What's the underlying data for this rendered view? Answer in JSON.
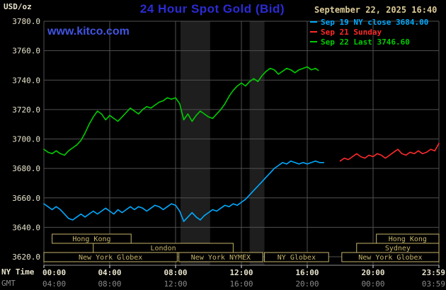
{
  "header": {
    "unit_label": "USD/oz",
    "title": "24 Hour Spot Gold (Bid)",
    "datetime": "September 22, 2025 16:40",
    "watermark": "www.kitco.com"
  },
  "legend": [
    {
      "label": "Sep 19 NY close 3684.00",
      "color": "#00aaff"
    },
    {
      "label": "Sep 21 Sunday",
      "color": "#ff2a2a"
    },
    {
      "label": "Sep 22 Last 3746.60",
      "color": "#00cc00"
    }
  ],
  "axes": {
    "ny_time_label": "NY Time",
    "gmt_label": "GMT",
    "x_ticks_ny": [
      "00:00",
      "04:00",
      "08:00",
      "12:00",
      "16:00",
      "20:00",
      "23:59"
    ],
    "x_ticks_gmt": [
      "04:00",
      "08:00",
      "12:00",
      "16:00",
      "20:00",
      "00:00",
      "03:59"
    ],
    "y_ticks": [
      "3780.0",
      "3760.0",
      "3740.0",
      "3720.0",
      "3700.0",
      "3680.0",
      "3660.0",
      "3640.0",
      "3620.0"
    ]
  },
  "sessions": [
    {
      "row": 0,
      "start": 0.5,
      "end": 5.3,
      "label": "Hong Kong"
    },
    {
      "row": 0,
      "start": 20.2,
      "end": 24,
      "label": "Hong Kong"
    },
    {
      "row": 1,
      "start": 3.0,
      "end": 11.5,
      "label": "London"
    },
    {
      "row": 1,
      "start": 19.0,
      "end": 24,
      "label": "Sydney"
    },
    {
      "row": 2,
      "start": 0,
      "end": 8.1,
      "label": "New York Globex"
    },
    {
      "row": 2,
      "start": 8.2,
      "end": 13.3,
      "label": "New York NYMEX"
    },
    {
      "row": 2,
      "start": 13.4,
      "end": 17.3,
      "label": "NY Globex"
    },
    {
      "row": 2,
      "start": 18.1,
      "end": 24,
      "label": "New York Globex"
    }
  ],
  "colors": {
    "title_blue": "#2b2bd4",
    "watermark_blue": "#4154e2",
    "datetime_tan": "#dcca96",
    "axis_text": "#e8e4cc",
    "gmt_text": "#8a8a8a",
    "grid": "#505050",
    "session_tan": "#c6b46a",
    "band": "#1e1e1e"
  },
  "chart_data": {
    "type": "line",
    "title": "24 Hour Spot Gold (Bid)",
    "xlabel": "NY Time",
    "ylabel": "USD/oz",
    "xlim": [
      0,
      24
    ],
    "ylim": [
      3620,
      3780
    ],
    "y_grid_step": 20,
    "x_grid_hours": [
      0,
      4,
      8,
      12,
      16,
      20,
      24
    ],
    "grid": true,
    "legend_position": "top-right",
    "shaded_bands": [
      {
        "start": 8.3,
        "end": 10.1
      },
      {
        "start": 12.5,
        "end": 13.4
      }
    ],
    "series": [
      {
        "name": "Sep 19 NY close 3684.00",
        "color": "#00aaff",
        "x": [
          0,
          0.25,
          0.5,
          0.75,
          1,
          1.25,
          1.5,
          1.75,
          2,
          2.25,
          2.5,
          2.75,
          3,
          3.25,
          3.5,
          3.75,
          4,
          4.25,
          4.5,
          4.75,
          5,
          5.25,
          5.5,
          5.75,
          6,
          6.25,
          6.5,
          6.75,
          7,
          7.25,
          7.5,
          7.75,
          8,
          8.25,
          8.5,
          8.75,
          9,
          9.25,
          9.5,
          9.75,
          10,
          10.25,
          10.5,
          10.75,
          11,
          11.25,
          11.5,
          11.75,
          12,
          12.25,
          12.5,
          12.75,
          13,
          13.25,
          13.5,
          13.75,
          14,
          14.25,
          14.5,
          14.75,
          15,
          15.25,
          15.5,
          15.75,
          16,
          16.25,
          16.5,
          16.75,
          17
        ],
        "y": [
          3656,
          3654,
          3652,
          3654,
          3652,
          3649,
          3646,
          3645,
          3647,
          3649,
          3647,
          3649,
          3651,
          3649,
          3651,
          3653,
          3651,
          3649,
          3652,
          3650,
          3652,
          3654,
          3652,
          3654,
          3653,
          3651,
          3653,
          3655,
          3654,
          3652,
          3654,
          3656,
          3655,
          3651,
          3644,
          3647,
          3650,
          3647,
          3645,
          3648,
          3650,
          3652,
          3651,
          3653,
          3655,
          3654,
          3656,
          3655,
          3657,
          3659,
          3662,
          3665,
          3668,
          3671,
          3674,
          3677,
          3680,
          3682,
          3684,
          3683,
          3685,
          3684,
          3683,
          3684,
          3683,
          3684,
          3685,
          3684,
          3684
        ]
      },
      {
        "name": "Sep 21 Sunday",
        "color": "#ff2a2a",
        "x": [
          18,
          18.25,
          18.5,
          18.75,
          19,
          19.25,
          19.5,
          19.75,
          20,
          20.25,
          20.5,
          20.75,
          21,
          21.25,
          21.5,
          21.75,
          22,
          22.25,
          22.5,
          22.75,
          23,
          23.25,
          23.5,
          23.75,
          24
        ],
        "y": [
          3685,
          3687,
          3686,
          3688,
          3690,
          3688,
          3687,
          3689,
          3688,
          3690,
          3689,
          3687,
          3689,
          3691,
          3693,
          3690,
          3689,
          3691,
          3690,
          3692,
          3690,
          3691,
          3693,
          3692,
          3697
        ]
      },
      {
        "name": "Sep 22 Last 3746.60",
        "color": "#00cc00",
        "x": [
          0,
          0.25,
          0.5,
          0.75,
          1,
          1.25,
          1.5,
          1.75,
          2,
          2.25,
          2.5,
          2.75,
          3,
          3.25,
          3.5,
          3.75,
          4,
          4.25,
          4.5,
          4.75,
          5,
          5.25,
          5.5,
          5.75,
          6,
          6.25,
          6.5,
          6.75,
          7,
          7.25,
          7.5,
          7.75,
          8,
          8.25,
          8.5,
          8.75,
          9,
          9.25,
          9.5,
          9.75,
          10,
          10.25,
          10.5,
          10.75,
          11,
          11.25,
          11.5,
          11.75,
          12,
          12.25,
          12.5,
          12.75,
          13,
          13.25,
          13.5,
          13.75,
          14,
          14.25,
          14.5,
          14.75,
          15,
          15.25,
          15.5,
          15.75,
          16,
          16.25,
          16.5,
          16.67
        ],
        "y": [
          3693,
          3691,
          3690,
          3692,
          3690,
          3689,
          3692,
          3694,
          3696,
          3699,
          3704,
          3710,
          3715,
          3719,
          3717,
          3713,
          3716,
          3714,
          3712,
          3715,
          3718,
          3721,
          3719,
          3717,
          3720,
          3722,
          3721,
          3723,
          3725,
          3726,
          3728,
          3727,
          3728,
          3724,
          3713,
          3717,
          3712,
          3716,
          3719,
          3717,
          3715,
          3714,
          3717,
          3720,
          3724,
          3729,
          3733,
          3736,
          3738,
          3736,
          3739,
          3741,
          3739,
          3743,
          3746,
          3748,
          3747,
          3744,
          3746,
          3748,
          3747,
          3745,
          3747,
          3748,
          3749,
          3747,
          3748,
          3746.6
        ]
      }
    ]
  }
}
